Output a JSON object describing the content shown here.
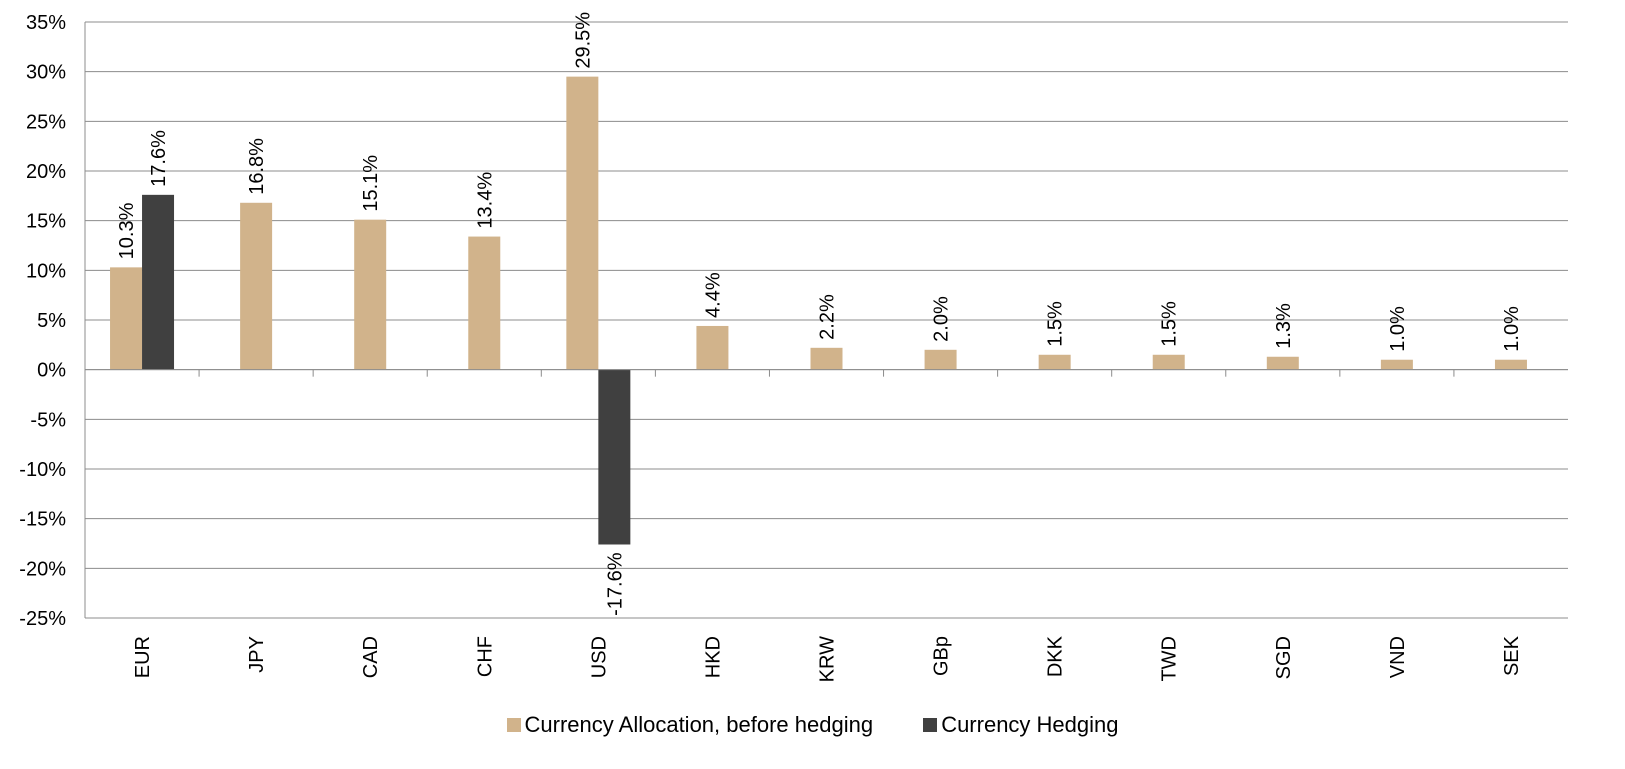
{
  "chart_data": {
    "type": "bar",
    "categories": [
      "EUR",
      "JPY",
      "CAD",
      "CHF",
      "USD",
      "HKD",
      "KRW",
      "GBp",
      "DKK",
      "TWD",
      "SGD",
      "VND",
      "SEK"
    ],
    "series": [
      {
        "name": "Currency Allocation, before hedging",
        "color": "#d1b38b",
        "values": [
          10.3,
          16.8,
          15.1,
          13.4,
          29.5,
          4.4,
          2.2,
          2.0,
          1.5,
          1.5,
          1.3,
          1.0,
          1.0
        ],
        "labels": [
          "10.3%",
          "16.8%",
          "15.1%",
          "13.4%",
          "29.5%",
          "4.4%",
          "2.2%",
          "2.0%",
          "1.5%",
          "1.5%",
          "1.3%",
          "1.0%",
          "1.0%"
        ]
      },
      {
        "name": "Currency Hedging",
        "color": "#404040",
        "values": [
          17.6,
          null,
          null,
          null,
          -17.6,
          null,
          null,
          null,
          null,
          null,
          null,
          null,
          null
        ],
        "labels": [
          "17.6%",
          null,
          null,
          null,
          "-17.6%",
          null,
          null,
          null,
          null,
          null,
          null,
          null,
          null
        ]
      }
    ],
    "ylim": [
      -25,
      35
    ],
    "yticks": [
      35,
      30,
      25,
      20,
      15,
      10,
      5,
      0,
      -5,
      -10,
      -15,
      -20,
      -25
    ],
    "ytick_labels": [
      "35%",
      "30%",
      "25%",
      "20%",
      "15%",
      "10%",
      "5%",
      "0%",
      "-5%",
      "-10%",
      "-15%",
      "-20%",
      "-25%"
    ],
    "grid": true,
    "legend_position": "bottom",
    "title": "",
    "xlabel": "",
    "ylabel": ""
  }
}
